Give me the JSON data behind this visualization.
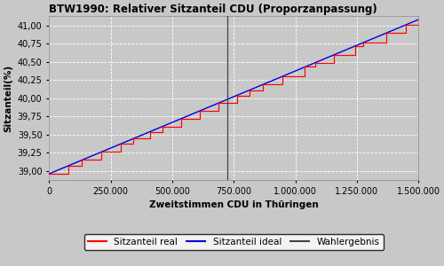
{
  "title": "BTW1990: Relativer Sitzanteil CDU (Proporzanpassung)",
  "xlabel": "Zweitstimmen CDU in Thüringen",
  "ylabel": "Sitzanteil(%)",
  "xlim": [
    0,
    1500000
  ],
  "ylim": [
    38.875,
    41.125
  ],
  "yticks": [
    39.0,
    39.25,
    39.5,
    39.75,
    40.0,
    40.25,
    40.5,
    40.75,
    41.0
  ],
  "xticks": [
    0,
    250000,
    500000,
    750000,
    1000000,
    1250000,
    1500000
  ],
  "wahlergebnis_x": 725000,
  "ideal_start_y": 38.96,
  "ideal_end_y": 41.08,
  "n_steps": 22,
  "color_real": "#ff0000",
  "color_ideal": "#0000dd",
  "color_wahlergebnis": "#444444",
  "bg_color": "#c8c8c8",
  "grid_color": "#ffffff",
  "fig_bg_color": "#c8c8c8",
  "legend_labels": [
    "Sitzanteil real",
    "Sitzanteil ideal",
    "Wahlergebnis"
  ]
}
